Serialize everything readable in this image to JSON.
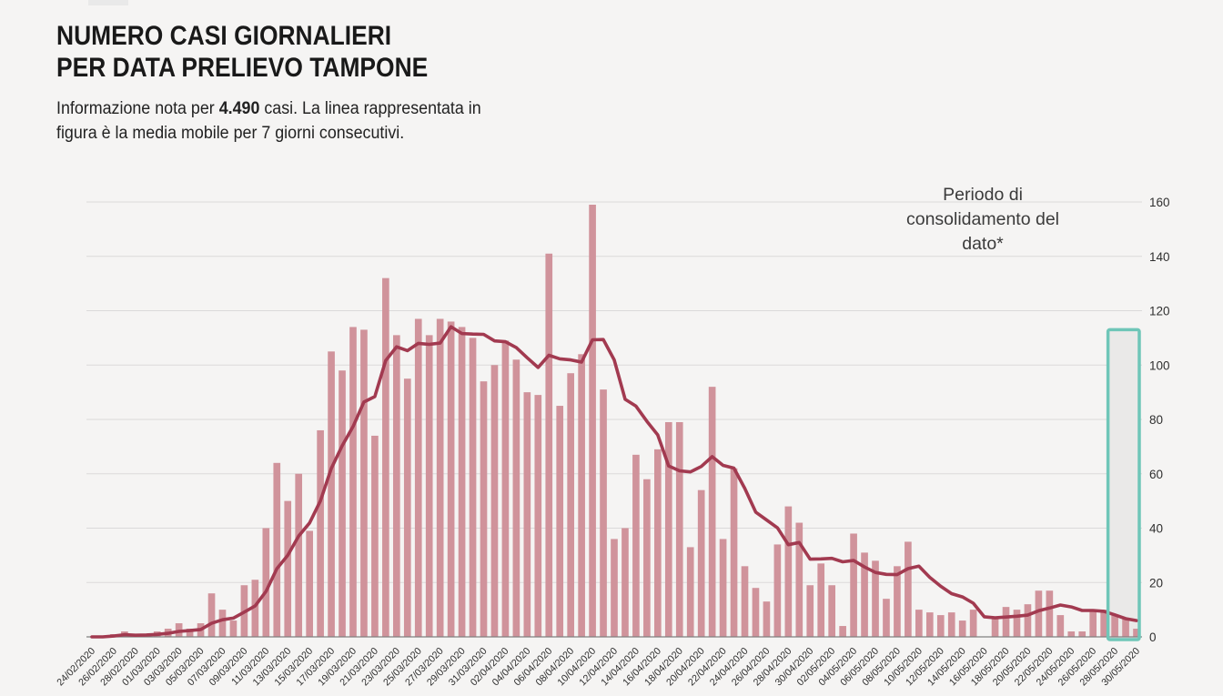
{
  "page": {
    "background": "#f5f4f3"
  },
  "header": {
    "title_line1": "NUMERO CASI GIORNALIERI",
    "title_line2": "PER DATA PRELIEVO TAMPONE",
    "subtitle_prefix": "Informazione nota per ",
    "subtitle_highlight": "4.490",
    "subtitle_suffix": " casi. La linea rappresentata in figura è la media mobile per 7 giorni consecutivi."
  },
  "annotation": {
    "label": "Periodo di consolidamento del dato*"
  },
  "chart_data": {
    "type": "bar",
    "title": "Numero casi giornalieri per data prelievo tampone",
    "xlabel": "",
    "ylabel": "",
    "ylim": [
      0,
      160
    ],
    "yticks": [
      0,
      20,
      40,
      60,
      80,
      100,
      120,
      140,
      160
    ],
    "grid": true,
    "yaxis_side": "right",
    "xtick_every": 2,
    "x": [
      "24/02/2020",
      "25/02/2020",
      "26/02/2020",
      "27/02/2020",
      "28/02/2020",
      "29/02/2020",
      "01/03/2020",
      "02/03/2020",
      "03/03/2020",
      "04/03/2020",
      "05/03/2020",
      "06/03/2020",
      "07/03/2020",
      "08/03/2020",
      "09/03/2020",
      "10/03/2020",
      "11/03/2020",
      "12/03/2020",
      "13/03/2020",
      "14/03/2020",
      "15/03/2020",
      "16/03/2020",
      "17/03/2020",
      "18/03/2020",
      "19/03/2020",
      "20/03/2020",
      "21/03/2020",
      "22/03/2020",
      "23/03/2020",
      "24/03/2020",
      "25/03/2020",
      "26/03/2020",
      "27/03/2020",
      "28/03/2020",
      "29/03/2020",
      "30/03/2020",
      "31/03/2020",
      "01/04/2020",
      "02/04/2020",
      "03/04/2020",
      "04/04/2020",
      "05/04/2020",
      "06/04/2020",
      "07/04/2020",
      "08/04/2020",
      "09/04/2020",
      "10/04/2020",
      "11/04/2020",
      "12/04/2020",
      "13/04/2020",
      "14/04/2020",
      "15/04/2020",
      "16/04/2020",
      "17/04/2020",
      "18/04/2020",
      "19/04/2020",
      "20/04/2020",
      "21/04/2020",
      "22/04/2020",
      "23/04/2020",
      "24/04/2020",
      "25/04/2020",
      "26/04/2020",
      "27/04/2020",
      "28/04/2020",
      "29/04/2020",
      "30/04/2020",
      "01/05/2020",
      "02/05/2020",
      "03/05/2020",
      "04/05/2020",
      "05/05/2020",
      "06/05/2020",
      "07/05/2020",
      "08/05/2020",
      "09/05/2020",
      "10/05/2020",
      "11/05/2020",
      "12/05/2020",
      "13/05/2020",
      "14/05/2020",
      "15/05/2020",
      "16/05/2020",
      "17/05/2020",
      "18/05/2020",
      "19/05/2020",
      "20/05/2020",
      "21/05/2020",
      "22/05/2020",
      "23/05/2020",
      "24/05/2020",
      "25/05/2020",
      "26/05/2020",
      "27/05/2020",
      "28/05/2020",
      "29/05/2020",
      "30/05/2020"
    ],
    "series": [
      {
        "name": "Casi giornalieri",
        "type": "bar",
        "color": "#d0939b",
        "values": [
          0,
          0,
          1,
          2,
          0,
          1,
          2,
          3,
          5,
          3,
          5,
          16,
          10,
          6,
          19,
          21,
          40,
          64,
          50,
          60,
          39,
          76,
          105,
          98,
          114,
          113,
          74,
          132,
          111,
          95,
          117,
          111,
          117,
          116,
          114,
          110,
          94,
          100,
          109,
          102,
          90,
          89,
          141,
          85,
          97,
          104,
          159,
          91,
          36,
          40,
          67,
          58,
          69,
          79,
          79,
          33,
          54,
          92,
          36,
          62,
          26,
          18,
          13,
          34,
          48,
          42,
          19,
          27,
          19,
          4,
          38,
          31,
          28,
          14,
          26,
          35,
          10,
          9,
          8,
          9,
          6,
          10,
          0,
          7,
          11,
          10,
          12,
          17,
          17,
          8,
          2,
          2,
          10,
          10,
          8,
          7,
          3
        ]
      },
      {
        "name": "Media mobile 7 giorni",
        "type": "line",
        "color": "#a23a50",
        "values": [
          0,
          0,
          0.3,
          0.8,
          0.6,
          0.7,
          0.9,
          1.3,
          2,
          2.3,
          2.7,
          5,
          6.3,
          6.9,
          9.1,
          11.4,
          16.7,
          25.1,
          30,
          37.1,
          41.9,
          50,
          62,
          70.3,
          77.4,
          86.4,
          88.4,
          101.7,
          106.7,
          105.3,
          108,
          107.6,
          108.1,
          114.1,
          111.6,
          111.4,
          111.3,
          108.9,
          108.6,
          106.4,
          102.7,
          99.1,
          103.6,
          102.3,
          101.9,
          101.1,
          109.3,
          109.4,
          101.9,
          87.4,
          84.9,
          79.3,
          74.3,
          62.9,
          61.1,
          60.7,
          62.7,
          66.3,
          63.1,
          62.1,
          54.6,
          45.9,
          43,
          40.1,
          33.9,
          34.7,
          28.6,
          28.7,
          28.9,
          27.6,
          28.1,
          25.7,
          23.7,
          23,
          22.9,
          25.1,
          26,
          21.9,
          18.6,
          15.9,
          14.7,
          12.4,
          7.4,
          7,
          7.3,
          7.6,
          8,
          9.6,
          10.6,
          11.7,
          11,
          9.7,
          9.7,
          9.4,
          8.1,
          6.7,
          6
        ]
      }
    ],
    "consolidation_box": {
      "label": "Periodo di consolidamento del dato*",
      "start_index": 94,
      "end_index": 96,
      "top_value": 113,
      "border_color": "#6fc6b8",
      "fill_color": "#eae9e8"
    },
    "colors": {
      "background": "#f5f4f3",
      "gridline": "#dbdada",
      "axis_line": "#808080",
      "bar": "#d0939b",
      "line": "#a23a50",
      "tick_text": "#2f2f2f"
    }
  }
}
